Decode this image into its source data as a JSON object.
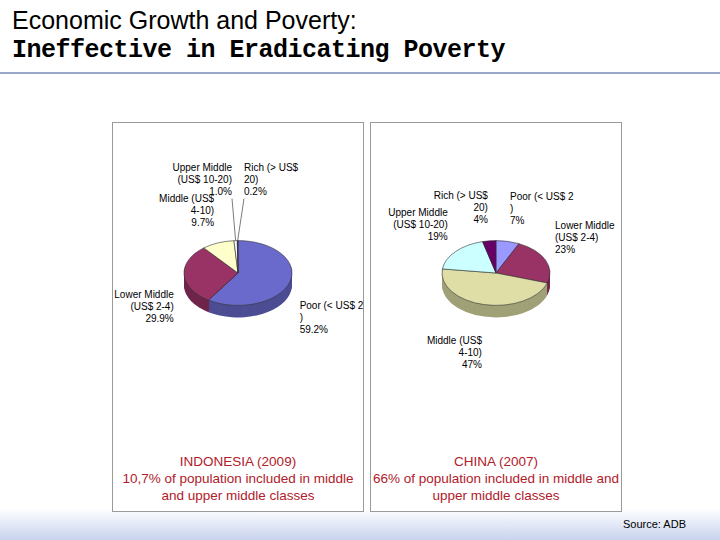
{
  "slide": {
    "title": "Economic Growth and Poverty:",
    "subtitle": "Ineffective in Eradicating Poverty",
    "source": "Source: ADB"
  },
  "chart_data": [
    {
      "type": "pie",
      "title": "INDONESIA (2009)",
      "subtitle": "10,7% of population included in middle and upper middle classes",
      "categories": [
        "Poor (< US$ 2 )",
        "Lower Middle (US$ 2-4)",
        "Middle (US$ 4-10)",
        "Upper Middle (US$ 10-20)",
        "Rich (> US$ 20)"
      ],
      "values": [
        59.2,
        29.9,
        9.7,
        1.0,
        0.2
      ],
      "value_labels": [
        "59.2%",
        "29.9%",
        "9.7%",
        "1.0%",
        "0.2%"
      ],
      "colors": [
        "#6a6acc",
        "#993366",
        "#ffffcc",
        "#f4fbfb",
        "#660066"
      ],
      "data_labels": true
    },
    {
      "type": "pie",
      "title": "CHINA (2007)",
      "subtitle": "66% of population included in middle and upper middle classes",
      "categories": [
        "Poor (< US$ 2 )",
        "Lower Middle (US$ 2-4)",
        "Middle (US$ 4-10)",
        "Upper Middle (US$ 10-20)",
        "Rich (> US$ 20)"
      ],
      "values": [
        7,
        23,
        47,
        19,
        4
      ],
      "value_labels": [
        "7%",
        "23%",
        "47%",
        "19%",
        "4%"
      ],
      "colors": [
        "#9999ff",
        "#993366",
        "#dedea6",
        "#ccffff",
        "#660066"
      ],
      "data_labels": true
    }
  ]
}
